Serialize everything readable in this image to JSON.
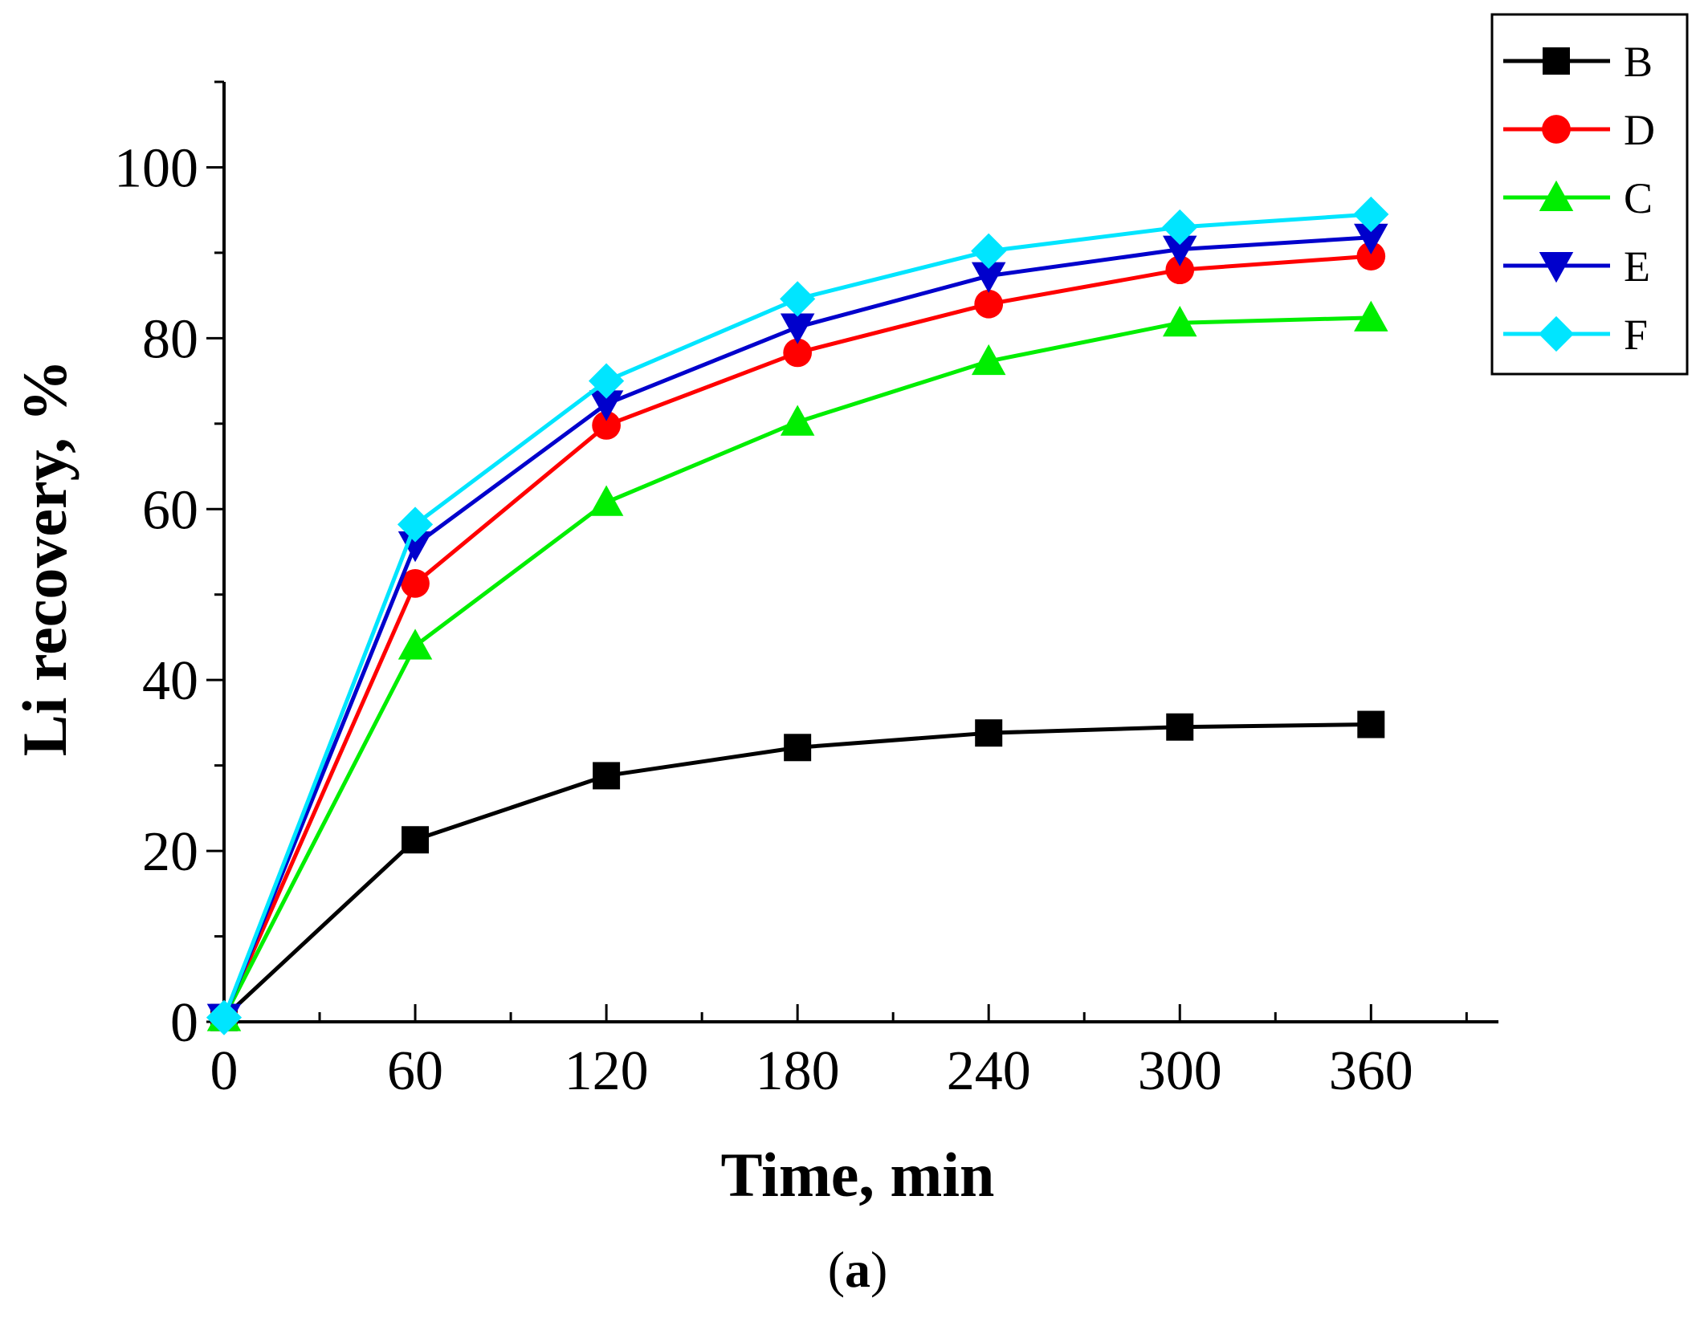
{
  "chart_data": {
    "type": "line",
    "title": "",
    "xlabel": "Time, min",
    "ylabel": "Li recovery, %",
    "x": [
      0,
      60,
      120,
      180,
      240,
      300,
      360
    ],
    "xlim": [
      0,
      400
    ],
    "ylim": [
      0,
      110
    ],
    "xticks": [
      0,
      60,
      120,
      180,
      240,
      300,
      360
    ],
    "xtick_labels": [
      "0",
      "60",
      "120",
      "180",
      "240",
      "300",
      "360"
    ],
    "yticks": [
      0,
      20,
      40,
      60,
      80,
      100
    ],
    "ytick_labels": [
      "0",
      "20",
      "40",
      "60",
      "80",
      "100"
    ],
    "grid": false,
    "legend_position": "top-right",
    "series": [
      {
        "name": "B",
        "color": "#000000",
        "marker": "square",
        "values": [
          0.5,
          21.3,
          28.8,
          32.1,
          33.8,
          34.5,
          34.8
        ]
      },
      {
        "name": "D",
        "color": "#ff0000",
        "marker": "circle",
        "values": [
          0.5,
          51.3,
          69.8,
          78.3,
          84.0,
          88.0,
          89.6
        ]
      },
      {
        "name": "C",
        "color": "#00ee00",
        "marker": "triangle-up",
        "values": [
          0.5,
          44.0,
          60.8,
          70.2,
          77.3,
          81.8,
          82.4
        ]
      },
      {
        "name": "E",
        "color": "#0000cc",
        "marker": "triangle-down",
        "values": [
          0.5,
          55.8,
          72.3,
          81.3,
          87.3,
          90.4,
          91.8
        ]
      },
      {
        "name": "F",
        "color": "#00e5ff",
        "marker": "diamond",
        "values": [
          0.5,
          58.2,
          75.0,
          84.6,
          90.2,
          93.0,
          94.5
        ]
      }
    ],
    "annotation": {
      "open": "(",
      "letter": "a",
      "close": ")"
    }
  }
}
